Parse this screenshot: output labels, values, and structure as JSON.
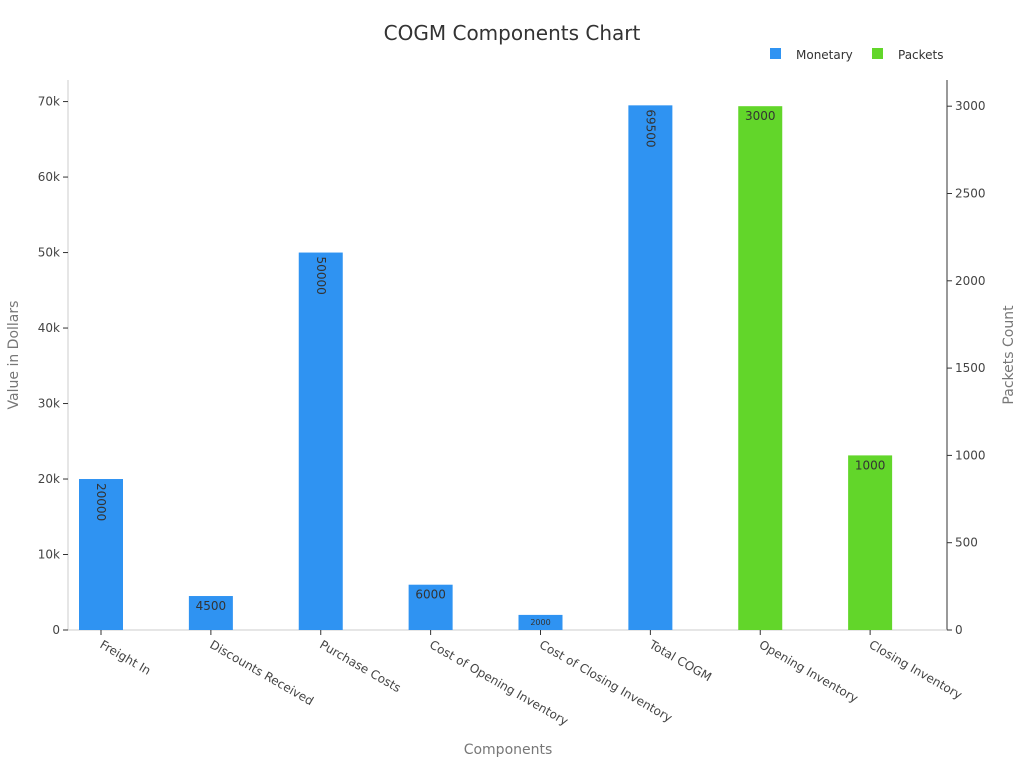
{
  "chart_data": {
    "type": "bar",
    "title": "COGM Components Chart",
    "xlabel": "Components",
    "ylabel": "Value in Dollars",
    "y2label": "Packets Count",
    "categories": [
      "Freight In",
      "Discounts Received",
      "Purchase Costs",
      "Cost of Opening Inventory",
      "Cost of Closing Inventory",
      "Total COGM",
      "Opening Inventory",
      "Closing Inventory"
    ],
    "series": [
      {
        "name": "Monetary",
        "axis": "left",
        "color": "#2f93f2",
        "values": [
          20000,
          4500,
          50000,
          6000,
          2000,
          69500,
          null,
          null
        ],
        "labels": [
          "20000",
          "4500",
          "50000",
          "6000",
          "2000",
          "69500",
          "",
          ""
        ],
        "label_orientation": [
          "vertical",
          "horizontal",
          "vertical",
          "horizontal",
          "horizontal",
          "vertical",
          "",
          ""
        ]
      },
      {
        "name": "Packets",
        "axis": "right",
        "color": "#62d62a",
        "values": [
          null,
          null,
          null,
          null,
          null,
          null,
          3000,
          1000
        ],
        "labels": [
          "",
          "",
          "",
          "",
          "",
          "",
          "3000",
          "1000"
        ],
        "label_orientation": [
          "",
          "",
          "",
          "",
          "",
          "",
          "horizontal",
          "horizontal"
        ]
      }
    ],
    "ylim": [
      0,
      72857
    ],
    "y2lim": [
      0,
      3150
    ],
    "yticks": [
      0,
      10000,
      20000,
      30000,
      40000,
      50000,
      60000,
      70000
    ],
    "ytick_labels": [
      "0",
      "10k",
      "20k",
      "30k",
      "40k",
      "50k",
      "60k",
      "70k"
    ],
    "y2ticks": [
      0,
      500,
      1000,
      1500,
      2000,
      2500,
      3000
    ],
    "y2tick_labels": [
      "0",
      "500",
      "1000",
      "1500",
      "2000",
      "2500",
      "3000"
    ],
    "legend": "top-right",
    "grid": false
  }
}
